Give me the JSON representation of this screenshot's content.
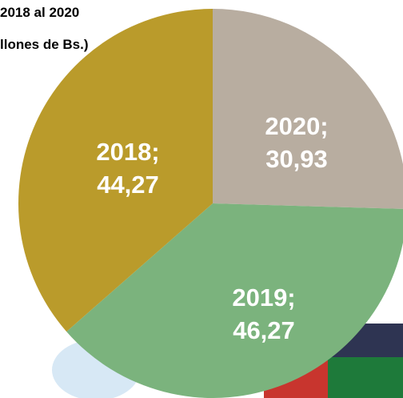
{
  "chart_data": {
    "type": "pie",
    "title_lines": [
      "2018 al 2020",
      "llones de Bs.)"
    ],
    "slices": [
      {
        "year": "2018",
        "value_text": "44,27",
        "value": 44.27,
        "color": "#BA9B2B"
      },
      {
        "year": "2019",
        "value_text": "46,27",
        "value": 46.27,
        "color": "#7BB37D"
      },
      {
        "year": "2020",
        "value_text": "30,93",
        "value": 30.93,
        "color": "#B8ADA0"
      }
    ],
    "label_separator": ";",
    "legend": "none"
  },
  "background": {
    "logo_colors": [
      "#D7E8F5",
      "#2E3452",
      "#C8352E",
      "#1E7A3A"
    ]
  }
}
